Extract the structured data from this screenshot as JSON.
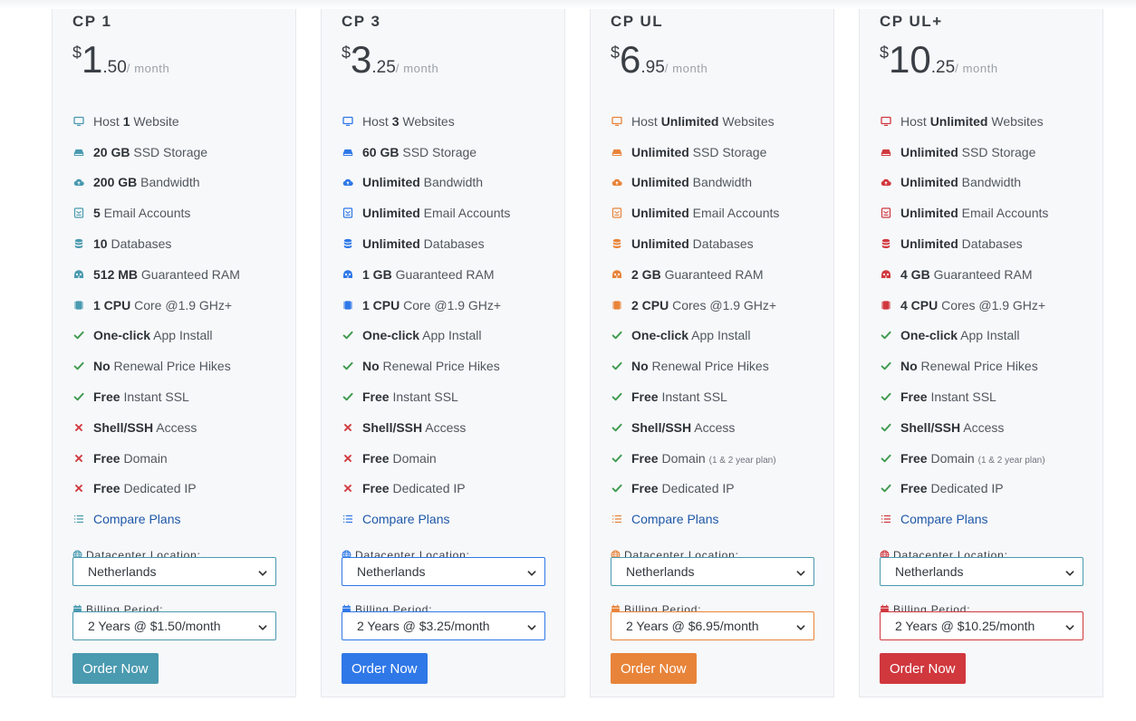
{
  "plans": [
    {
      "name": "CP 1",
      "price": {
        "currency": "$",
        "whole": "1",
        "cents": ".50",
        "period": "/ month"
      },
      "accent": "#4a9ab0",
      "features": [
        {
          "icon": "monitor-icon",
          "pre": "Host ",
          "bold": "1",
          "post": " Website",
          "note": ""
        },
        {
          "icon": "hdd-icon",
          "pre": "",
          "bold": "20 GB",
          "post": " SSD Storage",
          "note": ""
        },
        {
          "icon": "cloud-icon",
          "pre": "",
          "bold": "200 GB",
          "post": " Bandwidth",
          "note": ""
        },
        {
          "icon": "mail-icon",
          "pre": "",
          "bold": "5",
          "post": " Email Accounts",
          "note": ""
        },
        {
          "icon": "database-icon",
          "pre": "",
          "bold": "10",
          "post": " Databases",
          "note": ""
        },
        {
          "icon": "memory-icon",
          "pre": "",
          "bold": "512 MB",
          "post": " Guaranteed RAM",
          "note": ""
        },
        {
          "icon": "cpu-icon",
          "pre": "",
          "bold": "1 CPU",
          "post": " Core @1.9 GHz+",
          "note": ""
        },
        {
          "icon": "check-icon",
          "pre": "",
          "bold": "One-click",
          "post": " App Install",
          "note": ""
        },
        {
          "icon": "check-icon",
          "pre": "",
          "bold": "No",
          "post": " Renewal Price Hikes",
          "note": ""
        },
        {
          "icon": "check-icon",
          "pre": "",
          "bold": "Free",
          "post": " Instant SSL",
          "note": ""
        },
        {
          "icon": "cross-icon",
          "pre": "",
          "bold": "Shell/SSH",
          "post": " Access",
          "note": ""
        },
        {
          "icon": "cross-icon",
          "pre": "",
          "bold": "Free",
          "post": " Domain",
          "note": ""
        },
        {
          "icon": "cross-icon",
          "pre": "",
          "bold": "Free",
          "post": " Dedicated IP",
          "note": ""
        }
      ],
      "compare_label": "Compare Plans",
      "datacenter_label": "Datacenter Location:",
      "datacenter_value": "Netherlands",
      "billing_label": "Billing Period:",
      "billing_value": "2 Years @ $1.50/month",
      "order_label": "Order Now"
    },
    {
      "name": "CP 3",
      "price": {
        "currency": "$",
        "whole": "3",
        "cents": ".25",
        "period": "/ month"
      },
      "accent": "#2f78e8",
      "features": [
        {
          "icon": "monitor-icon",
          "pre": "Host ",
          "bold": "3",
          "post": " Websites",
          "note": ""
        },
        {
          "icon": "hdd-icon",
          "pre": "",
          "bold": "60 GB",
          "post": " SSD Storage",
          "note": ""
        },
        {
          "icon": "cloud-icon",
          "pre": "",
          "bold": "Unlimited",
          "post": " Bandwidth",
          "note": ""
        },
        {
          "icon": "mail-icon",
          "pre": "",
          "bold": "Unlimited",
          "post": " Email Accounts",
          "note": ""
        },
        {
          "icon": "database-icon",
          "pre": "",
          "bold": "Unlimited",
          "post": " Databases",
          "note": ""
        },
        {
          "icon": "memory-icon",
          "pre": "",
          "bold": "1 GB",
          "post": " Guaranteed RAM",
          "note": ""
        },
        {
          "icon": "cpu-icon",
          "pre": "",
          "bold": "1 CPU",
          "post": " Core @1.9 GHz+",
          "note": ""
        },
        {
          "icon": "check-icon",
          "pre": "",
          "bold": "One-click",
          "post": " App Install",
          "note": ""
        },
        {
          "icon": "check-icon",
          "pre": "",
          "bold": "No",
          "post": " Renewal Price Hikes",
          "note": ""
        },
        {
          "icon": "check-icon",
          "pre": "",
          "bold": "Free",
          "post": " Instant SSL",
          "note": ""
        },
        {
          "icon": "cross-icon",
          "pre": "",
          "bold": "Shell/SSH",
          "post": " Access",
          "note": ""
        },
        {
          "icon": "cross-icon",
          "pre": "",
          "bold": "Free",
          "post": " Domain",
          "note": ""
        },
        {
          "icon": "cross-icon",
          "pre": "",
          "bold": "Free",
          "post": " Dedicated IP",
          "note": ""
        }
      ],
      "compare_label": "Compare Plans",
      "datacenter_label": "Datacenter Location:",
      "datacenter_value": "Netherlands",
      "billing_label": "Billing Period:",
      "billing_value": "2 Years @ $3.25/month",
      "order_label": "Order Now"
    },
    {
      "name": "CP UL",
      "price": {
        "currency": "$",
        "whole": "6",
        "cents": ".95",
        "period": "/ month"
      },
      "accent": "#e8843a",
      "features": [
        {
          "icon": "monitor-icon",
          "pre": "Host ",
          "bold": "Unlimited",
          "post": " Websites",
          "note": ""
        },
        {
          "icon": "hdd-icon",
          "pre": "",
          "bold": "Unlimited",
          "post": " SSD Storage",
          "note": ""
        },
        {
          "icon": "cloud-icon",
          "pre": "",
          "bold": "Unlimited",
          "post": " Bandwidth",
          "note": ""
        },
        {
          "icon": "mail-icon",
          "pre": "",
          "bold": "Unlimited",
          "post": " Email Accounts",
          "note": ""
        },
        {
          "icon": "database-icon",
          "pre": "",
          "bold": "Unlimited",
          "post": " Databases",
          "note": ""
        },
        {
          "icon": "memory-icon",
          "pre": "",
          "bold": "2 GB",
          "post": " Guaranteed RAM",
          "note": ""
        },
        {
          "icon": "cpu-icon",
          "pre": "",
          "bold": "2 CPU",
          "post": " Cores @1.9 GHz+",
          "note": ""
        },
        {
          "icon": "check-icon",
          "pre": "",
          "bold": "One-click",
          "post": " App Install",
          "note": ""
        },
        {
          "icon": "check-icon",
          "pre": "",
          "bold": "No",
          "post": " Renewal Price Hikes",
          "note": ""
        },
        {
          "icon": "check-icon",
          "pre": "",
          "bold": "Free",
          "post": " Instant SSL",
          "note": ""
        },
        {
          "icon": "check-icon",
          "pre": "",
          "bold": "Shell/SSH",
          "post": " Access",
          "note": ""
        },
        {
          "icon": "check-icon",
          "pre": "",
          "bold": "Free",
          "post": " Domain ",
          "note": "(1 & 2 year plan)"
        },
        {
          "icon": "check-icon",
          "pre": "",
          "bold": "Free",
          "post": " Dedicated IP",
          "note": ""
        }
      ],
      "compare_label": "Compare Plans",
      "datacenter_label": "Datacenter Location:",
      "datacenter_value": "Netherlands",
      "billing_label": "Billing Period:",
      "billing_value": "2 Years @ $6.95/month",
      "order_label": "Order Now"
    },
    {
      "name": "CP UL+",
      "price": {
        "currency": "$",
        "whole": "10",
        "cents": ".25",
        "period": "/ month"
      },
      "accent": "#d0383e",
      "features": [
        {
          "icon": "monitor-icon",
          "pre": "Host ",
          "bold": "Unlimited",
          "post": " Websites",
          "note": ""
        },
        {
          "icon": "hdd-icon",
          "pre": "",
          "bold": "Unlimited",
          "post": " SSD Storage",
          "note": ""
        },
        {
          "icon": "cloud-icon",
          "pre": "",
          "bold": "Unlimited",
          "post": " Bandwidth",
          "note": ""
        },
        {
          "icon": "mail-icon",
          "pre": "",
          "bold": "Unlimited",
          "post": " Email Accounts",
          "note": ""
        },
        {
          "icon": "database-icon",
          "pre": "",
          "bold": "Unlimited",
          "post": " Databases",
          "note": ""
        },
        {
          "icon": "memory-icon",
          "pre": "",
          "bold": "4 GB",
          "post": " Guaranteed RAM",
          "note": ""
        },
        {
          "icon": "cpu-icon",
          "pre": "",
          "bold": "4 CPU",
          "post": " Cores @1.9 GHz+",
          "note": ""
        },
        {
          "icon": "check-icon",
          "pre": "",
          "bold": "One-click",
          "post": " App Install",
          "note": ""
        },
        {
          "icon": "check-icon",
          "pre": "",
          "bold": "No",
          "post": " Renewal Price Hikes",
          "note": ""
        },
        {
          "icon": "check-icon",
          "pre": "",
          "bold": "Free",
          "post": " Instant SSL",
          "note": ""
        },
        {
          "icon": "check-icon",
          "pre": "",
          "bold": "Shell/SSH",
          "post": " Access",
          "note": ""
        },
        {
          "icon": "check-icon",
          "pre": "",
          "bold": "Free",
          "post": " Domain ",
          "note": "(1 & 2 year plan)"
        },
        {
          "icon": "check-icon",
          "pre": "",
          "bold": "Free",
          "post": " Dedicated IP",
          "note": ""
        }
      ],
      "compare_label": "Compare Plans",
      "datacenter_label": "Datacenter Location:",
      "datacenter_value": "Netherlands",
      "billing_label": "Billing Period:",
      "billing_value": "2 Years @ $10.25/month",
      "order_label": "Order Now"
    }
  ],
  "colors": {
    "check": "#3f9b50",
    "cross": "#d0383e",
    "compare_link": "#1f58a8"
  }
}
